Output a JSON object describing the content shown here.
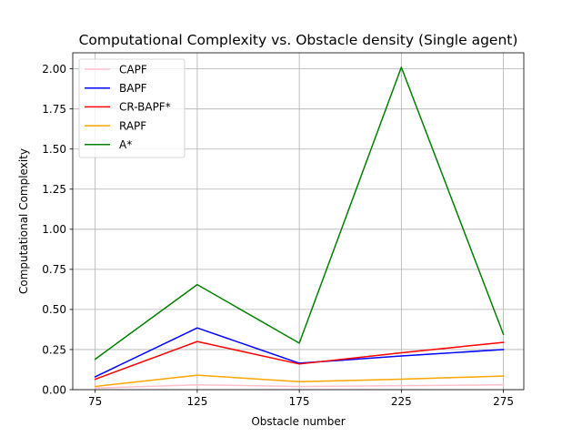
{
  "chart_data": {
    "type": "line",
    "title": "Computational Complexity vs. Obstacle density (Single agent)",
    "xlabel": "Obstacle number",
    "ylabel": "Computational Complexity",
    "x": [
      75,
      125,
      175,
      225,
      275
    ],
    "xticks": [
      "75",
      "125",
      "175",
      "225",
      "275"
    ],
    "yticks": [
      0.0,
      0.25,
      0.5,
      0.75,
      1.0,
      1.25,
      1.5,
      1.75,
      2.0
    ],
    "ytick_labels": [
      "0.00",
      "0.25",
      "0.50",
      "0.75",
      "1.00",
      "1.25",
      "1.50",
      "1.75",
      "2.00"
    ],
    "xlim": [
      64,
      285
    ],
    "ylim": [
      0,
      2.1
    ],
    "grid": true,
    "legend_position": "upper left",
    "series": [
      {
        "name": "CAPF",
        "color": "#ffc0cb",
        "values": [
          0.01,
          0.03,
          0.02,
          0.025,
          0.03
        ]
      },
      {
        "name": "BAPF",
        "color": "#0000ff",
        "values": [
          0.08,
          0.385,
          0.165,
          0.21,
          0.25
        ]
      },
      {
        "name": "CR-BAPF*",
        "color": "#ff0000",
        "values": [
          0.065,
          0.3,
          0.16,
          0.23,
          0.295
        ]
      },
      {
        "name": "RAPF",
        "color": "#ffa500",
        "values": [
          0.02,
          0.09,
          0.05,
          0.065,
          0.085
        ]
      },
      {
        "name": "A*",
        "color": "#008000",
        "values": [
          0.19,
          0.655,
          0.29,
          2.01,
          0.345
        ]
      }
    ]
  }
}
